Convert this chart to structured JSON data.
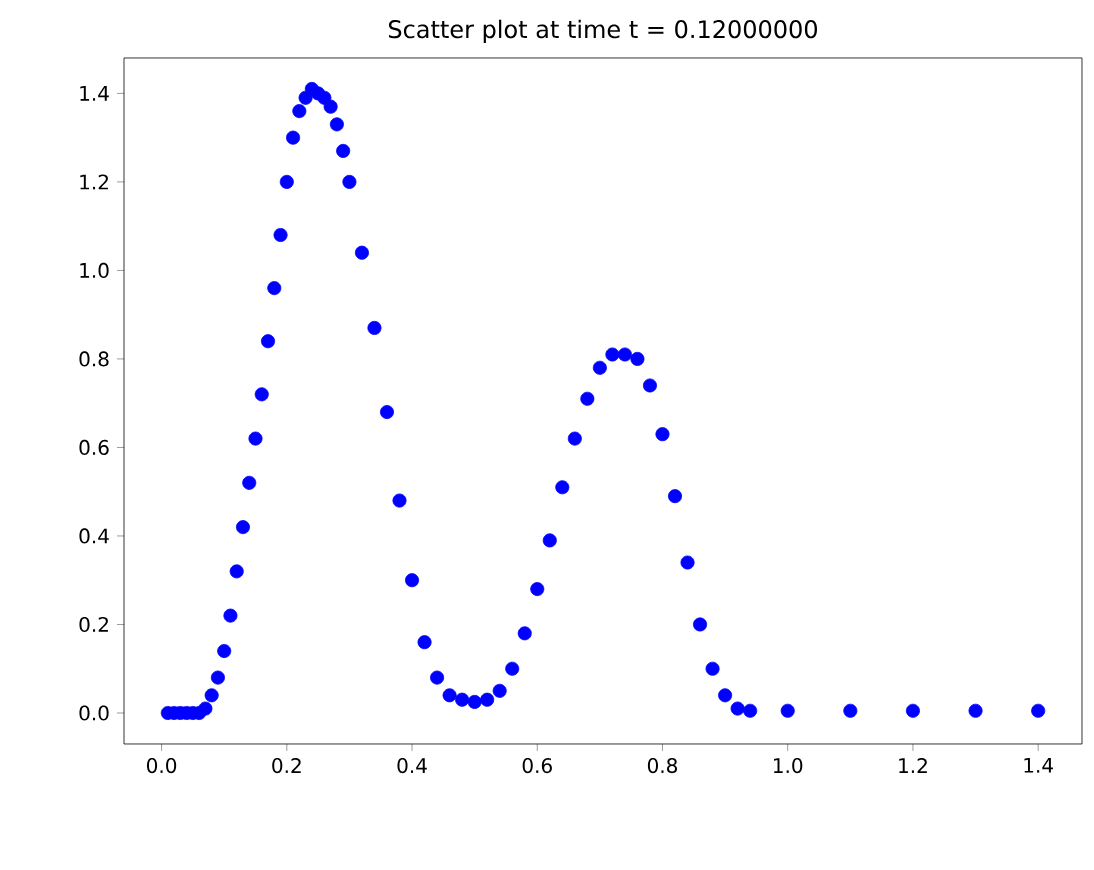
{
  "chart_data": {
    "type": "scatter",
    "title": "Scatter plot at time t =      0.12000000",
    "x": [
      0.01,
      0.02,
      0.03,
      0.04,
      0.05,
      0.06,
      0.07,
      0.08,
      0.09,
      0.1,
      0.11,
      0.12,
      0.13,
      0.14,
      0.15,
      0.16,
      0.17,
      0.18,
      0.19,
      0.2,
      0.21,
      0.22,
      0.23,
      0.24,
      0.25,
      0.26,
      0.27,
      0.28,
      0.29,
      0.3,
      0.32,
      0.34,
      0.36,
      0.38,
      0.4,
      0.42,
      0.44,
      0.46,
      0.48,
      0.5,
      0.52,
      0.54,
      0.56,
      0.58,
      0.6,
      0.62,
      0.64,
      0.66,
      0.68,
      0.7,
      0.72,
      0.74,
      0.76,
      0.78,
      0.8,
      0.82,
      0.84,
      0.86,
      0.88,
      0.9,
      0.92,
      0.94,
      1.0,
      1.1,
      1.2,
      1.3,
      1.4
    ],
    "values": [
      0,
      0,
      0,
      0,
      0,
      0,
      0.01,
      0.04,
      0.08,
      0.14,
      0.22,
      0.32,
      0.42,
      0.52,
      0.62,
      0.72,
      0.84,
      0.96,
      1.08,
      1.2,
      1.3,
      1.36,
      1.39,
      1.41,
      1.4,
      1.39,
      1.37,
      1.33,
      1.27,
      1.2,
      1.04,
      0.87,
      0.68,
      0.48,
      0.3,
      0.16,
      0.08,
      0.04,
      0.03,
      0.025,
      0.03,
      0.05,
      0.1,
      0.18,
      0.28,
      0.39,
      0.51,
      0.62,
      0.71,
      0.78,
      0.81,
      0.81,
      0.8,
      0.74,
      0.63,
      0.49,
      0.34,
      0.2,
      0.1,
      0.04,
      0.01,
      0.005,
      0.005,
      0.005,
      0.005,
      0.005,
      0.005
    ],
    "color": "#0000ff",
    "marker": "circle",
    "xlim": [
      -0.06,
      1.47
    ],
    "ylim": [
      -0.07,
      1.48
    ],
    "xticks": [
      {
        "value": 0,
        "label": "0.0"
      },
      {
        "value": 0.2,
        "label": "0.2"
      },
      {
        "value": 0.4,
        "label": "0.4"
      },
      {
        "value": 0.6,
        "label": "0.6"
      },
      {
        "value": 0.8,
        "label": "0.8"
      },
      {
        "value": 1.0,
        "label": "1.0"
      },
      {
        "value": 1.2,
        "label": "1.2"
      },
      {
        "value": 1.4,
        "label": "1.4"
      }
    ],
    "yticks": [
      {
        "value": 0,
        "label": "0.0"
      },
      {
        "value": 0.2,
        "label": "0.2"
      },
      {
        "value": 0.4,
        "label": "0.4"
      },
      {
        "value": 0.6,
        "label": "0.6"
      },
      {
        "value": 0.8,
        "label": "0.8"
      },
      {
        "value": 1.0,
        "label": "1.0"
      },
      {
        "value": 1.2,
        "label": "1.2"
      },
      {
        "value": 1.4,
        "label": "1.4"
      }
    ]
  }
}
